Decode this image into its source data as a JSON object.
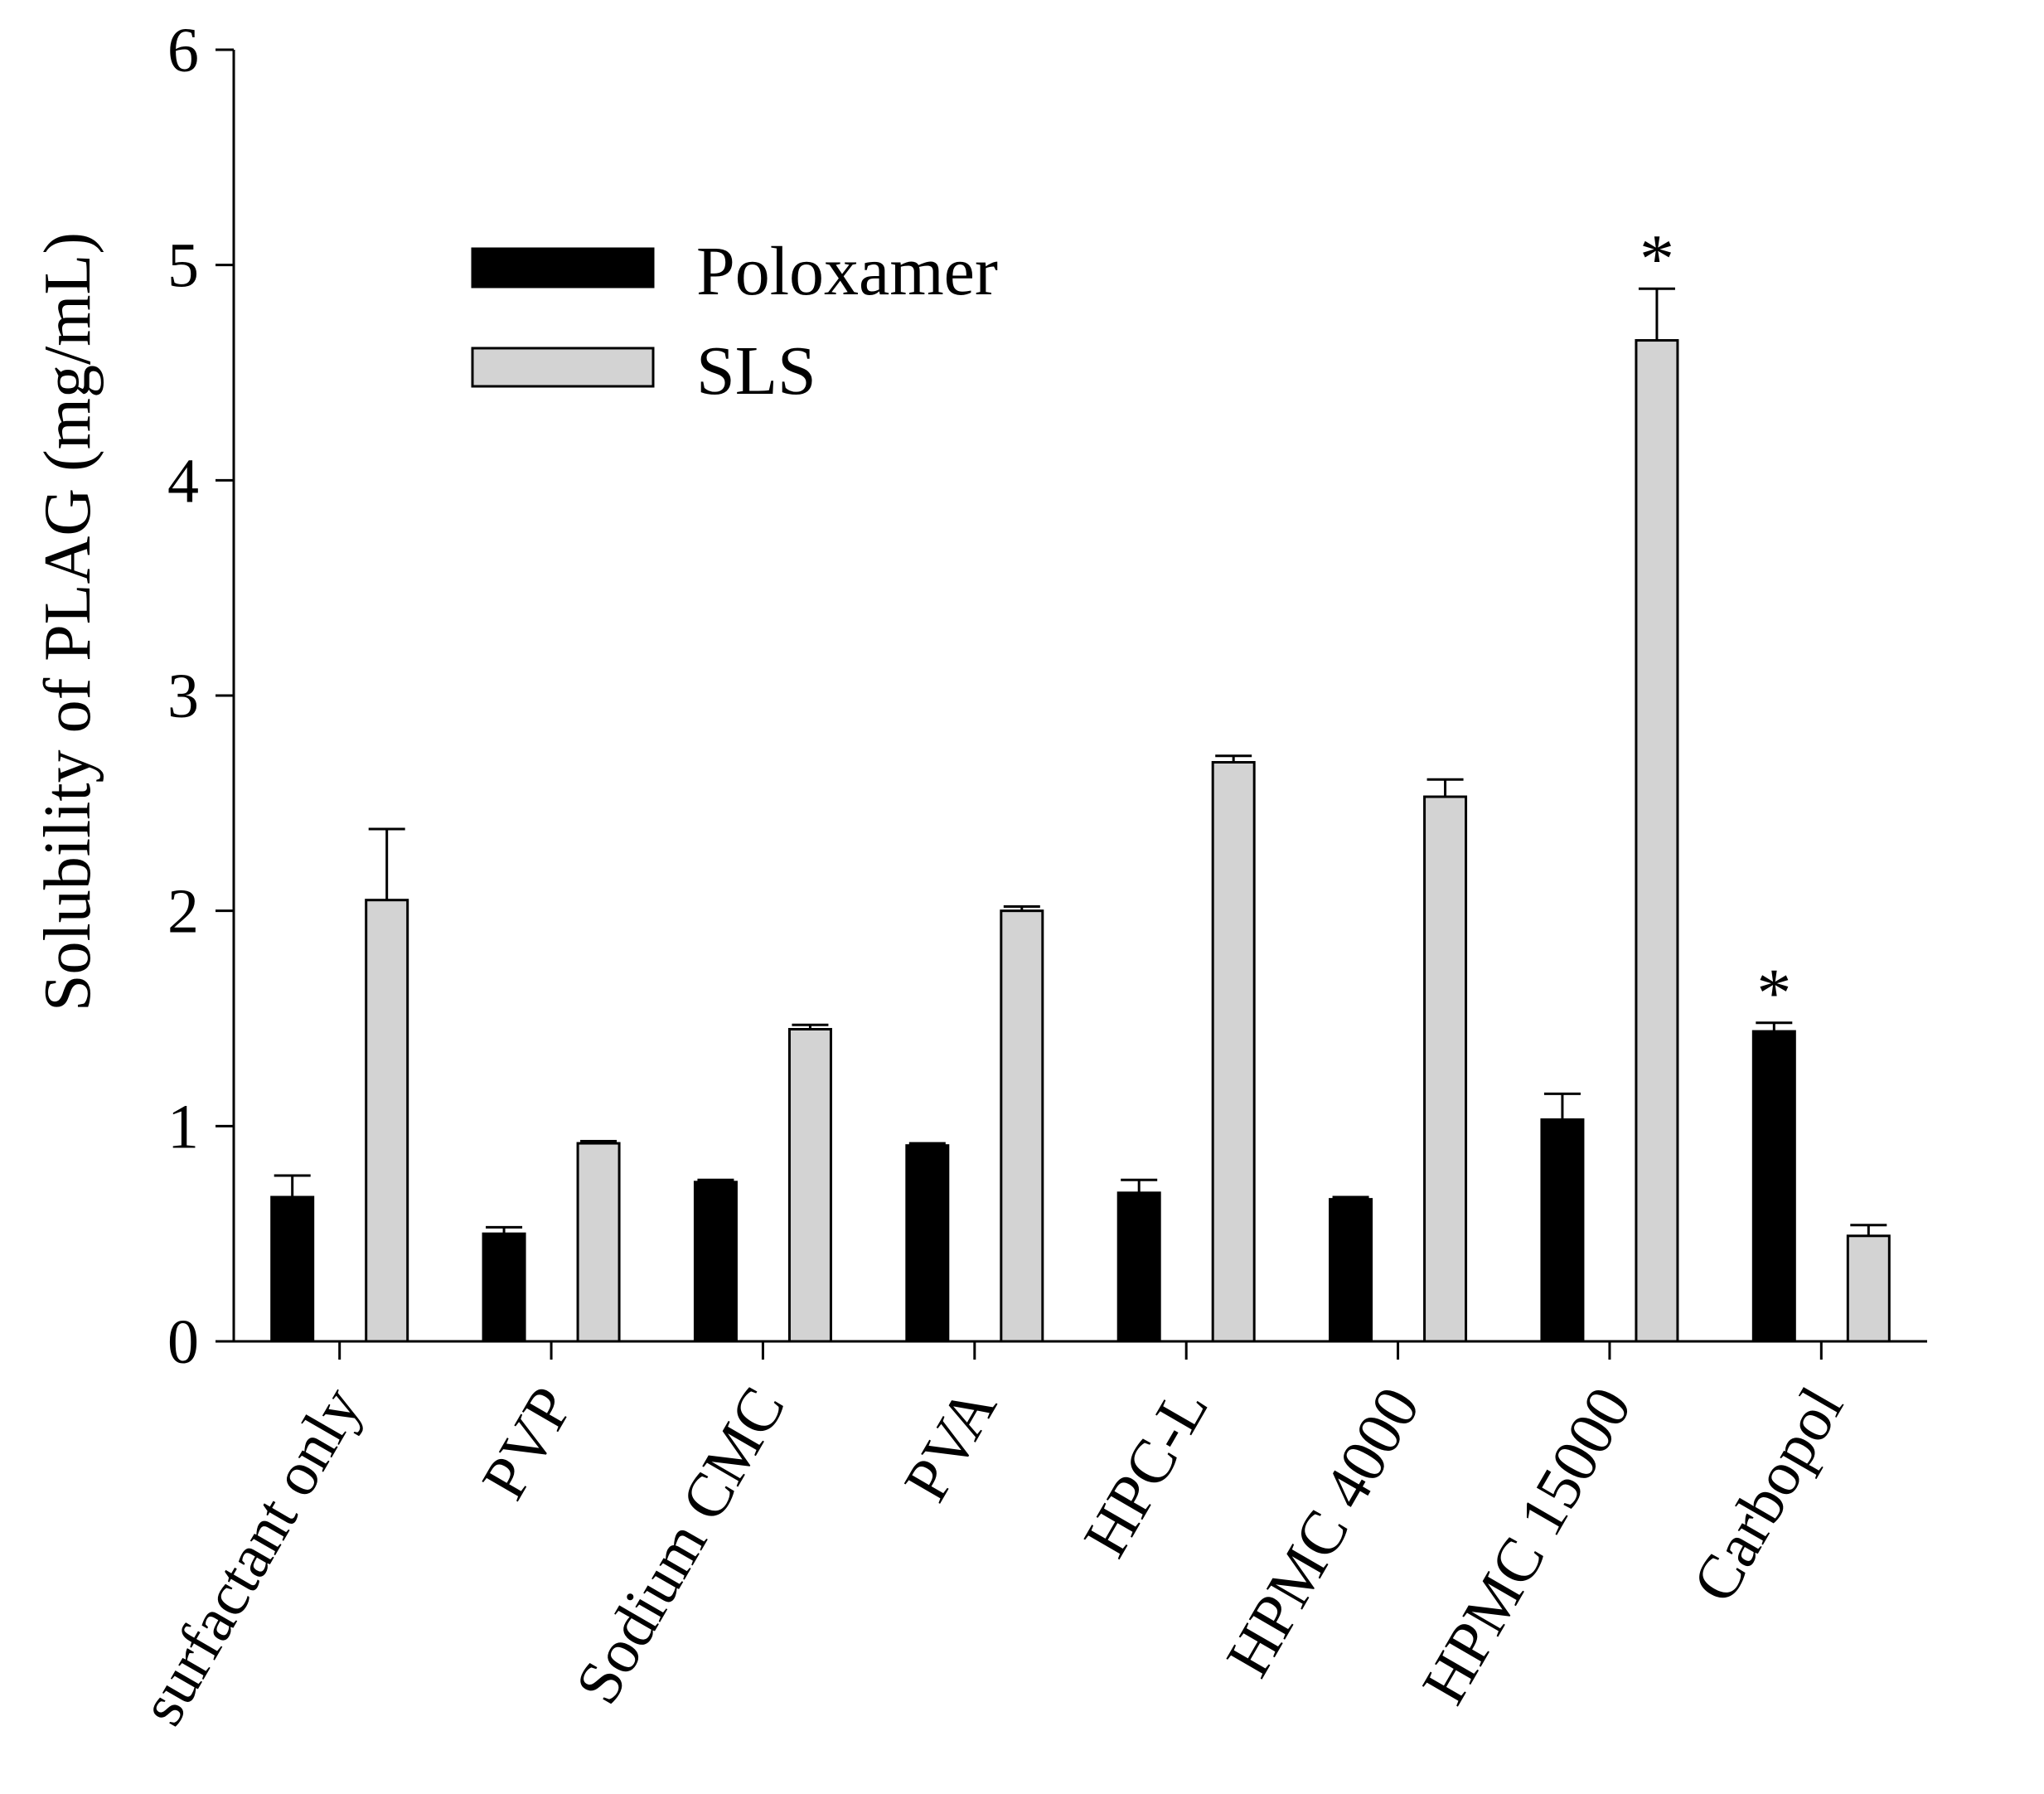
{
  "chart_data": {
    "type": "bar",
    "title": "",
    "xlabel": "",
    "ylabel": "Solubility of PLAG (mg/mL)",
    "ylim": [
      0,
      6
    ],
    "yticks": [
      "0",
      "1",
      "2",
      "3",
      "4",
      "5",
      "6"
    ],
    "categories": [
      "surfactant only",
      "PVP",
      "Sodium CMC",
      "PVA",
      "HPC-L",
      "HPMC 4000",
      "HPMC 15000",
      "Carbopol"
    ],
    "series": [
      {
        "name": "Poloxamer",
        "color": "#000000",
        "values": [
          0.67,
          0.5,
          0.74,
          0.91,
          0.69,
          0.66,
          1.03,
          1.44
        ],
        "errors": [
          0.1,
          0.03,
          0.01,
          0.01,
          0.06,
          0.01,
          0.12,
          0.04
        ],
        "significance": [
          "",
          "",
          "",
          "",
          "",
          "",
          "",
          "*"
        ]
      },
      {
        "name": "SLS",
        "color": "#d3d3d3",
        "values": [
          2.05,
          0.92,
          1.45,
          2.0,
          2.69,
          2.53,
          4.65,
          0.49
        ],
        "errors": [
          0.33,
          0.01,
          0.02,
          0.02,
          0.03,
          0.08,
          0.24,
          0.05
        ],
        "significance": [
          "",
          "",
          "",
          "",
          "",
          "",
          "*",
          ""
        ]
      }
    ],
    "legend": {
      "position": "top-left",
      "entries": [
        "Poloxamer",
        "SLS"
      ]
    },
    "grid": false
  }
}
